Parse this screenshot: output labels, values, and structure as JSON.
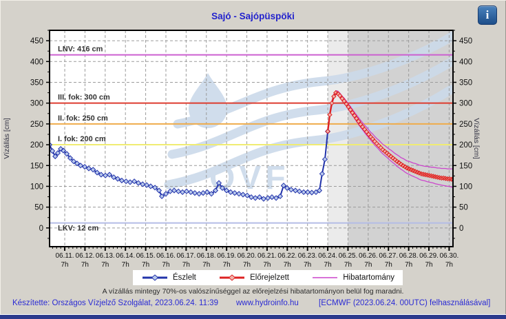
{
  "header": {
    "title": "Sajó - Sajópüspöki",
    "info_glyph": "i"
  },
  "colors": {
    "title": "#2323cd",
    "footer": "#2a2ad4",
    "note": "#2a2a2a"
  },
  "watermark": {
    "text": "OVF"
  },
  "note": "A vízállás mintegy 70%-os valószínűséggel az előrejelzési hibatartományon belül fog maradni.",
  "footer": {
    "made_by": "Készítette: Országos Vízjelző Szolgálat, 2023.06.24. 11:39",
    "site": "www.hydroinfo.hu",
    "model": "[ECMWF (2023.06.24. 00UTC) felhasználásával]"
  },
  "chart_data": {
    "type": "line",
    "title": "Sajó - Sajópüspöki",
    "ylabel_left": "Vízállás [cm]",
    "ylabel_right": "Vízállás [cm]",
    "ylim": [
      -45,
      475
    ],
    "yticks": [
      0,
      50,
      100,
      150,
      200,
      250,
      300,
      350,
      400,
      450
    ],
    "xlim": [
      10.54,
      30.48
    ],
    "grid_color": "#9a9a9a",
    "watermark_color": "#ccdaea",
    "xticks": [
      {
        "t": 11.29,
        "label": "06.11.",
        "sub": "7h"
      },
      {
        "t": 12.29,
        "label": "06.12.",
        "sub": "7h"
      },
      {
        "t": 13.29,
        "label": "06.13.",
        "sub": "7h"
      },
      {
        "t": 14.29,
        "label": "06.14.",
        "sub": "7h"
      },
      {
        "t": 15.29,
        "label": "06.15.",
        "sub": "7h"
      },
      {
        "t": 16.29,
        "label": "06.16.",
        "sub": "7h"
      },
      {
        "t": 17.29,
        "label": "06.17.",
        "sub": "7h"
      },
      {
        "t": 18.29,
        "label": "06.18.",
        "sub": "7h"
      },
      {
        "t": 19.29,
        "label": "06.19.",
        "sub": "7h"
      },
      {
        "t": 20.29,
        "label": "06.20.",
        "sub": "7h"
      },
      {
        "t": 21.29,
        "label": "06.21.",
        "sub": "7h"
      },
      {
        "t": 22.29,
        "label": "06.22.",
        "sub": "7h"
      },
      {
        "t": 23.29,
        "label": "06.23.",
        "sub": "7h"
      },
      {
        "t": 24.29,
        "label": "06.24.",
        "sub": "7h"
      },
      {
        "t": 25.29,
        "label": "06.25.",
        "sub": "7h"
      },
      {
        "t": 26.29,
        "label": "06.26.",
        "sub": "7h"
      },
      {
        "t": 27.29,
        "label": "06.27.",
        "sub": "7h"
      },
      {
        "t": 28.29,
        "label": "06.28.",
        "sub": "7h"
      },
      {
        "t": 29.29,
        "label": "06.29.",
        "sub": "7h"
      },
      {
        "t": 30.29,
        "label": "06.30.",
        "sub": "7h"
      }
    ],
    "shading": [
      {
        "from": 24.29,
        "to": 25.29,
        "color": "#ebebeb"
      },
      {
        "from": 25.29,
        "to": 30.48,
        "color": "#d2d2d2"
      }
    ],
    "reference_lines": [
      {
        "id": "lnv",
        "label": "LNV: 416 cm",
        "value": 416,
        "color": "#cc5fd0",
        "label_below": false
      },
      {
        "id": "fok3",
        "label": "III. fok: 300 cm",
        "value": 300,
        "color": "#dd3b2e",
        "label_below": false
      },
      {
        "id": "fok2",
        "label": "II. fok: 250 cm",
        "value": 250,
        "color": "#efab4a",
        "label_below": false
      },
      {
        "id": "fok1",
        "label": "I. fok: 200 cm",
        "value": 200,
        "color": "#f0ec72",
        "label_below": false
      },
      {
        "id": "lkv",
        "label": "LKV: 12 cm",
        "value": 12,
        "color": "#b4bce6",
        "label_below": true
      }
    ],
    "legend": [
      "Észlelt",
      "Előrejelzett",
      "Hibatartomány"
    ],
    "legend_position": "bottom",
    "series": [
      {
        "name": "Észlelt",
        "color": "#2233aa",
        "marker_fill": "#b9c9ec",
        "x": [
          10.54,
          10.68,
          10.82,
          10.95,
          11.09,
          11.22,
          11.39,
          11.56,
          11.73,
          11.9,
          12.07,
          12.28,
          12.48,
          12.69,
          12.89,
          13.09,
          13.3,
          13.5,
          13.71,
          13.91,
          14.11,
          14.32,
          14.52,
          14.73,
          14.93,
          15.14,
          15.34,
          15.54,
          15.75,
          15.95,
          16.09,
          16.29,
          16.5,
          16.7,
          16.91,
          17.11,
          17.31,
          17.52,
          17.72,
          17.93,
          18.13,
          18.33,
          18.54,
          18.74,
          18.91,
          19.08,
          19.29,
          19.49,
          19.69,
          19.9,
          20.1,
          20.31,
          20.51,
          20.71,
          20.92,
          21.12,
          21.33,
          21.53,
          21.74,
          21.94,
          22.11,
          22.28,
          22.48,
          22.69,
          22.89,
          23.1,
          23.3,
          23.5,
          23.71,
          23.88,
          24.01,
          24.15,
          24.29
        ],
        "y": [
          200,
          185,
          172,
          180,
          190,
          186,
          178,
          168,
          160,
          155,
          150,
          147,
          143,
          140,
          133,
          128,
          126,
          128,
          122,
          118,
          114,
          112,
          110,
          112,
          108,
          105,
          103,
          100,
          97,
          90,
          76,
          82,
          88,
          90,
          88,
          86,
          88,
          86,
          84,
          82,
          84,
          86,
          82,
          90,
          108,
          96,
          90,
          86,
          84,
          82,
          80,
          78,
          74,
          72,
          74,
          70,
          72,
          74,
          72,
          76,
          102,
          96,
          92,
          90,
          88,
          86,
          86,
          85,
          86,
          90,
          130,
          165,
          232
        ]
      },
      {
        "name": "Előrejelzett",
        "color": "#dd2222",
        "marker_fill": "#f2b4ac",
        "x": [
          24.29,
          24.39,
          24.49,
          24.59,
          24.69,
          24.79,
          24.89,
          25.0,
          25.1,
          25.21,
          25.31,
          25.41,
          25.51,
          25.61,
          25.71,
          25.81,
          25.91,
          26.01,
          26.11,
          26.21,
          26.31,
          26.41,
          26.51,
          26.61,
          26.71,
          26.81,
          26.91,
          27.01,
          27.11,
          27.21,
          27.31,
          27.41,
          27.51,
          27.61,
          27.71,
          27.81,
          27.91,
          28.01,
          28.11,
          28.21,
          28.31,
          28.41,
          28.51,
          28.61,
          28.71,
          28.81,
          28.91,
          29.01,
          29.11,
          29.21,
          29.31,
          29.41,
          29.51,
          29.61,
          29.71,
          29.81,
          29.91,
          30.01,
          30.11,
          30.21,
          30.31,
          30.41,
          30.48
        ],
        "y": [
          232,
          272,
          300,
          316,
          325,
          323,
          318,
          311,
          305,
          298,
          291,
          284,
          277,
          270,
          263,
          256,
          249,
          243,
          237,
          231,
          225,
          219,
          214,
          208,
          203,
          198,
          193,
          188,
          184,
          180,
          176,
          172,
          168,
          164,
          160,
          157,
          153,
          150,
          147,
          144,
          142,
          140,
          138,
          136,
          134,
          132,
          130,
          129,
          128,
          127,
          126,
          125,
          124,
          123,
          122,
          121,
          120,
          120,
          119,
          118,
          118,
          117,
          117
        ]
      },
      {
        "name": "Hibatartomány",
        "color": "#cc44cc",
        "band": {
          "x": [
            24.29,
            24.39,
            24.49,
            24.59,
            24.69,
            24.79,
            24.89,
            25.0,
            25.1,
            25.21,
            25.31,
            25.41,
            25.51,
            25.61,
            25.71,
            25.81,
            25.91,
            26.01,
            26.11,
            26.21,
            26.31,
            26.41,
            26.51,
            26.61,
            26.71,
            26.81,
            26.91,
            27.01,
            27.11,
            27.21,
            27.31,
            27.41,
            27.51,
            27.61,
            27.71,
            27.81,
            27.91,
            28.01,
            28.11,
            28.21,
            28.31,
            28.41,
            28.51,
            28.61,
            28.71,
            28.81,
            28.91,
            29.01,
            29.11,
            29.21,
            29.31,
            29.41,
            29.51,
            29.61,
            29.71,
            29.81,
            29.91,
            30.01,
            30.11,
            30.21,
            30.31,
            30.41,
            30.48
          ],
          "upper": [
            236,
            276,
            305,
            321,
            330,
            329,
            324,
            317,
            312,
            305,
            298,
            292,
            285,
            278,
            272,
            265,
            259,
            253,
            247,
            242,
            236,
            230,
            226,
            220,
            215,
            211,
            206,
            201,
            198,
            194,
            190,
            187,
            183,
            179,
            176,
            173,
            169,
            167,
            164,
            161,
            160,
            158,
            156,
            155,
            153,
            151,
            150,
            149,
            148,
            148,
            147,
            146,
            146,
            145,
            144,
            144,
            143,
            143,
            143,
            142,
            142,
            142,
            142
          ],
          "lower": [
            229,
            269,
            296,
            312,
            321,
            319,
            313,
            306,
            300,
            293,
            285,
            278,
            271,
            264,
            256,
            249,
            242,
            236,
            229,
            223,
            217,
            211,
            205,
            199,
            194,
            189,
            183,
            178,
            174,
            170,
            165,
            161,
            157,
            153,
            148,
            145,
            141,
            138,
            134,
            131,
            129,
            126,
            124,
            122,
            120,
            117,
            115,
            114,
            113,
            111,
            110,
            109,
            108,
            106,
            105,
            104,
            103,
            102,
            101,
            100,
            100,
            98,
            98
          ]
        }
      }
    ]
  }
}
